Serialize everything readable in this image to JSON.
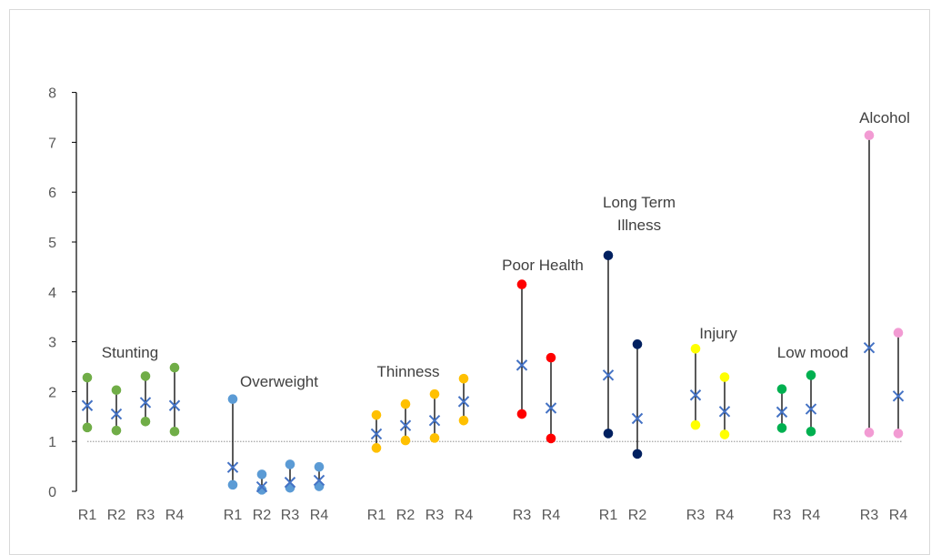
{
  "chart_data": {
    "type": "scatter",
    "title": "",
    "xlabel": "",
    "ylabel": "",
    "ylim": [
      0,
      8
    ],
    "yticks": [
      0,
      1,
      2,
      3,
      4,
      5,
      6,
      7,
      8
    ],
    "reference_line": 1,
    "grid": false,
    "legend": "none",
    "marker_center_color": "#4472C4",
    "groups": [
      {
        "label": "Stunting",
        "color": "#70AD47",
        "points": [
          {
            "x": "R1",
            "upper": 2.28,
            "estimate": 1.72,
            "lower": 1.28
          },
          {
            "x": "R2",
            "upper": 2.03,
            "estimate": 1.55,
            "lower": 1.22
          },
          {
            "x": "R3",
            "upper": 2.31,
            "estimate": 1.78,
            "lower": 1.4
          },
          {
            "x": "R4",
            "upper": 2.48,
            "estimate": 1.72,
            "lower": 1.2
          }
        ]
      },
      {
        "label": "Overweight",
        "color": "#5B9BD5",
        "points": [
          {
            "x": "R1",
            "upper": 1.85,
            "estimate": 0.48,
            "lower": 0.13
          },
          {
            "x": "R2",
            "upper": 0.34,
            "estimate": 0.09,
            "lower": 0.03
          },
          {
            "x": "R3",
            "upper": 0.54,
            "estimate": 0.18,
            "lower": 0.07
          },
          {
            "x": "R4",
            "upper": 0.49,
            "estimate": 0.22,
            "lower": 0.1
          }
        ]
      },
      {
        "label": "Thinness",
        "color": "#FFC000",
        "points": [
          {
            "x": "R1",
            "upper": 1.53,
            "estimate": 1.15,
            "lower": 0.87
          },
          {
            "x": "R2",
            "upper": 1.75,
            "estimate": 1.32,
            "lower": 1.02
          },
          {
            "x": "R3",
            "upper": 1.95,
            "estimate": 1.42,
            "lower": 1.07
          },
          {
            "x": "R4",
            "upper": 2.26,
            "estimate": 1.8,
            "lower": 1.42
          }
        ]
      },
      {
        "label": "Poor Health",
        "color": "#FF0000",
        "points": [
          {
            "x": "R3",
            "upper": 4.15,
            "estimate": 2.53,
            "lower": 1.55
          },
          {
            "x": "R4",
            "upper": 2.68,
            "estimate": 1.67,
            "lower": 1.06
          }
        ]
      },
      {
        "label": "Long Term Illness",
        "color": "#002060",
        "points": [
          {
            "x": "R1",
            "upper": 4.73,
            "estimate": 2.33,
            "lower": 1.16
          },
          {
            "x": "R2",
            "upper": 2.95,
            "estimate": 1.46,
            "lower": 0.75
          }
        ]
      },
      {
        "label": "Injury",
        "color": "#FFFF00",
        "points": [
          {
            "x": "R3",
            "upper": 2.86,
            "estimate": 1.93,
            "lower": 1.33
          },
          {
            "x": "R4",
            "upper": 2.29,
            "estimate": 1.6,
            "lower": 1.14
          }
        ]
      },
      {
        "label": "Low mood",
        "color": "#00B050",
        "points": [
          {
            "x": "R3",
            "upper": 2.05,
            "estimate": 1.59,
            "lower": 1.27
          },
          {
            "x": "R4",
            "upper": 2.33,
            "estimate": 1.65,
            "lower": 1.2
          }
        ]
      },
      {
        "label": "Alcohol",
        "color": "#F29BD3",
        "points": [
          {
            "x": "R3",
            "upper": 7.14,
            "estimate": 2.88,
            "lower": 1.18
          },
          {
            "x": "R4",
            "upper": 3.18,
            "estimate": 1.91,
            "lower": 1.16
          }
        ]
      }
    ]
  }
}
